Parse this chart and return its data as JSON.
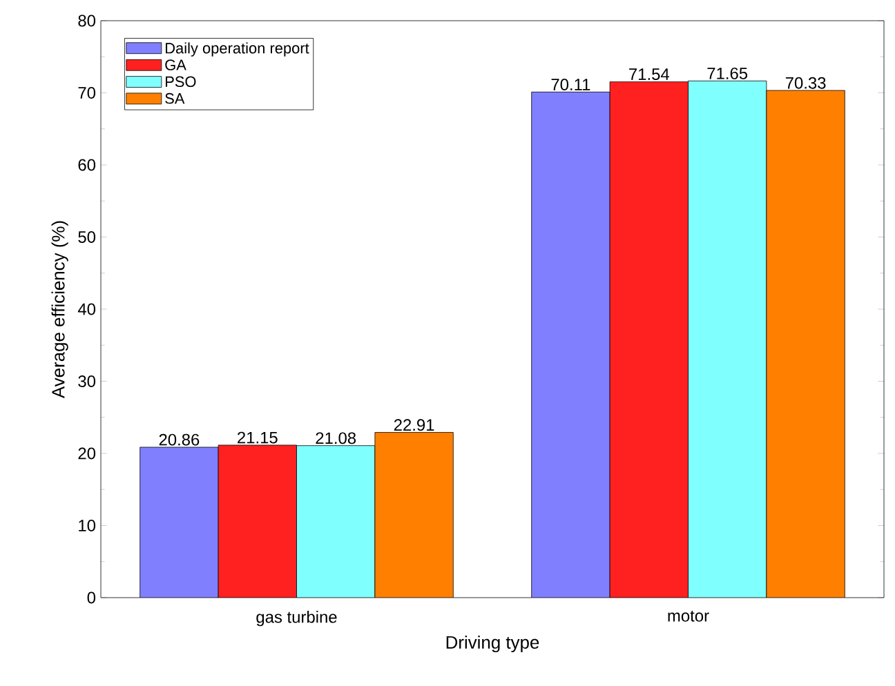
{
  "chart_data": {
    "type": "bar",
    "xlabel": "Driving type",
    "ylabel": "Average efficiency (%)",
    "categories": [
      "gas turbine",
      "motor"
    ],
    "series": [
      {
        "name": "Daily operation report",
        "color": "#8080ff",
        "values": [
          20.86,
          70.11
        ]
      },
      {
        "name": "GA",
        "color": "#ff2020",
        "values": [
          21.15,
          71.54
        ]
      },
      {
        "name": "PSO",
        "color": "#80ffff",
        "values": [
          21.08,
          71.65
        ]
      },
      {
        "name": "SA",
        "color": "#ff8000",
        "values": [
          22.91,
          70.33
        ]
      }
    ],
    "ylim": [
      0,
      80
    ],
    "yticks": [
      0,
      10,
      20,
      30,
      40,
      50,
      60,
      70,
      80
    ],
    "data_labels": true,
    "legend": "top left",
    "grid": false
  }
}
